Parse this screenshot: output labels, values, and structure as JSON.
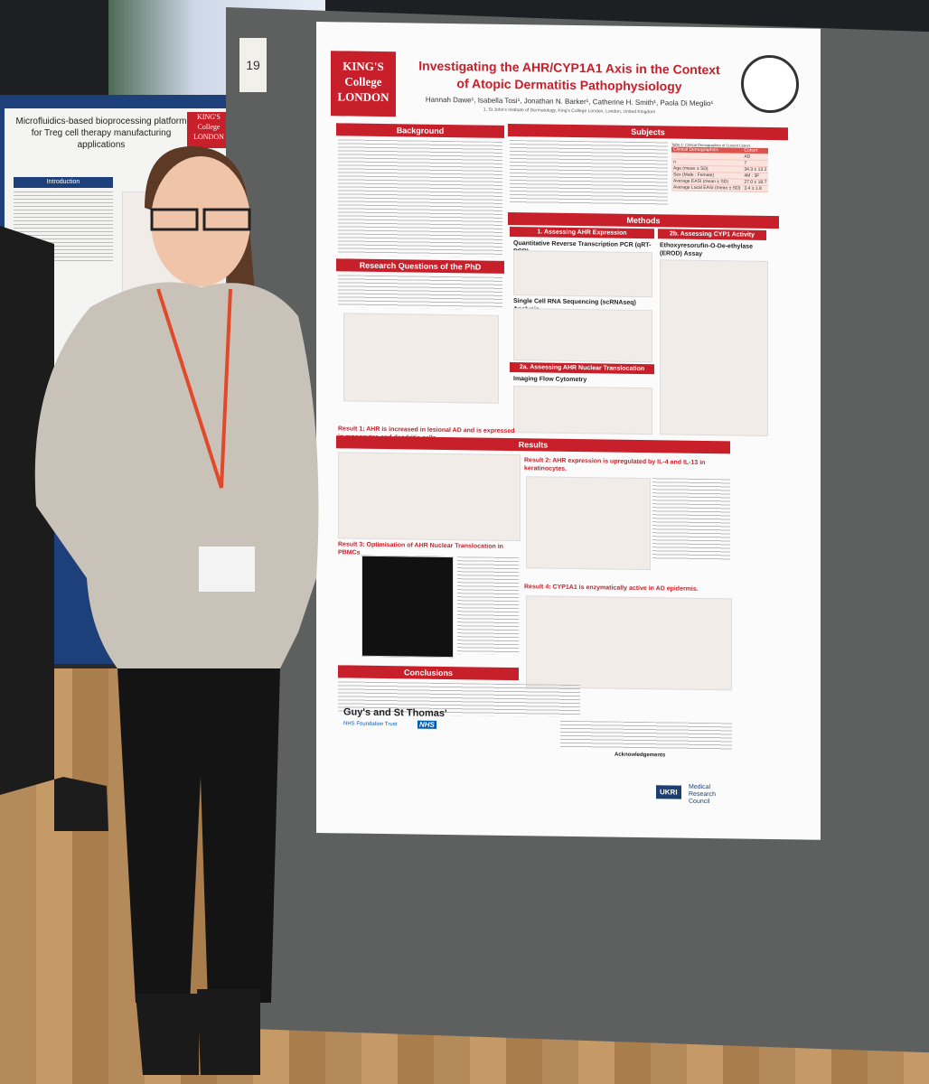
{
  "board_number": "19",
  "main_poster": {
    "logo": [
      "KING'S",
      "College",
      "LONDON"
    ],
    "title": [
      "Investigating the AHR/CYP1A1 Axis in the Context",
      "of Atopic Dermatitis Pathophysiology"
    ],
    "authors": "Hannah Dawe¹, Isabella Tosi¹, Jonathan N. Barker¹, Catherine H. Smith¹, Paola Di Meglio¹",
    "affiliation": "1. St John's Institute of Dermatology, King's College London, London, United Kingdom",
    "sections": {
      "background": "Background",
      "subjects": "Subjects",
      "methods": "Methods",
      "research_questions": "Research Questions of the PhD",
      "results": "Results",
      "conclusions": "Conclusions",
      "acknowledgements": "Acknowledgements"
    },
    "subjects_table": {
      "caption": "Table 1: Clinical Demographics of Current Cohort.",
      "rows": [
        [
          "Clinical Demographics",
          "Cohort"
        ],
        [
          "",
          "AD"
        ],
        [
          "n",
          "7"
        ],
        [
          "Age (mean ± SD)",
          "34.3 ± 13.2"
        ],
        [
          "Sex (Male : Female)",
          "4M : 3F"
        ],
        [
          "Average EASI (mean ± SD)",
          "27.0 ± 18.7"
        ],
        [
          "Average Local EASI (mean ± SD)",
          "3.4 ± 1.8"
        ]
      ]
    },
    "methods": {
      "m1": "1. Assessing AHR Expression",
      "m1_sub1": "Quantitative Reverse Transcription PCR (qRT-PCR)",
      "m1_sub2": "Single Cell RNA Sequencing (scRNAseq) Analysis",
      "m2a": "2a. Assessing AHR Nuclear Translocation",
      "m2a_sub": "Imaging Flow Cytometry",
      "m2b": "2b. Assessing CYP1 Activity",
      "m2b_sub": "Ethoxyresorufin-O-De-ethylase (EROD) Assay"
    },
    "results": {
      "r1": "Result 1: AHR is increased in lesional AD and is expressed in monocytes and dendritic cells.",
      "r2": "Result 2: AHR expression is upregulated by IL-4 and IL-13 in keratinocytes.",
      "r3": "Result 3: Optimisation of AHR Nuclear Translocation in PBMCs",
      "r4": "Result 4: CYP1A1 is enzymatically active in AD epidermis."
    },
    "footer": {
      "guys": "Guy's and St Thomas'",
      "nhs": "NHS",
      "trust": "NHS Foundation Trust",
      "ukri": "UKRI",
      "mrc": "Medical Research Council"
    }
  },
  "side_poster": {
    "title": "Microfluidics-based bioprocessing platform for Treg cell therapy manufacturing applications",
    "logo": [
      "KING'S",
      "College",
      "LONDON"
    ],
    "section": "Introduction"
  }
}
